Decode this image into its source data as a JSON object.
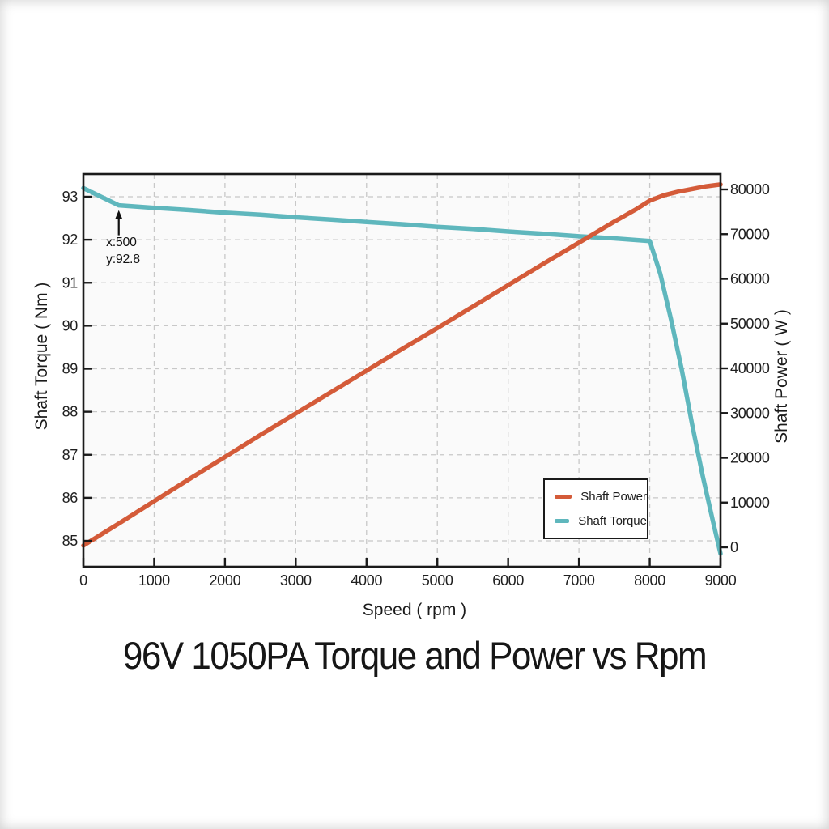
{
  "chart_data": {
    "type": "line",
    "title": "96V 1050PA Torque and Power vs Rpm",
    "xlabel": "Speed ( rpm )",
    "ylabel_left": "Shaft Torque ( Nm )",
    "ylabel_right": "Shaft Power ( W )",
    "grid": true,
    "x_axis": {
      "min": 0,
      "max": 9000,
      "ticks": [
        0,
        1000,
        2000,
        3000,
        4000,
        5000,
        6000,
        7000,
        8000,
        9000
      ],
      "tick_labels": [
        "0",
        "1000",
        "2000",
        "3000",
        "4000",
        "5000",
        "6000",
        "7000",
        "8000",
        "9000"
      ]
    },
    "y_axis_left": {
      "min": 85,
      "max": 93,
      "ticks": [
        85,
        86,
        87,
        88,
        89,
        90,
        91,
        92,
        93
      ],
      "tick_labels": [
        "85",
        "86",
        "87",
        "88",
        "89",
        "90",
        "91",
        "92",
        "93"
      ]
    },
    "y_axis_right": {
      "min": 0,
      "max": 80000,
      "ticks": [
        0,
        10000,
        20000,
        30000,
        40000,
        50000,
        60000,
        70000,
        80000
      ],
      "tick_labels": [
        "0",
        "10000",
        "20000",
        "30000",
        "40000",
        "50000",
        "60000",
        "70000",
        "80000"
      ]
    },
    "legend": {
      "position": "inside-lower-right",
      "entries": [
        "Shaft Power",
        "Shaft Torque"
      ]
    },
    "annotation": {
      "line1": "x:500",
      "line2": "y:92.8",
      "x": 500,
      "y": 92.8,
      "arrow": true
    },
    "style": {
      "plot_bg": "#fafafa",
      "grid_color": "#c8c8c8",
      "axis_color": "#1a1a1a",
      "text_color": "#1f1f1f"
    },
    "series": [
      {
        "name": "Shaft Power",
        "axis": "right",
        "color": "#d45b39",
        "points": [
          [
            0,
            400
          ],
          [
            500,
            5300
          ],
          [
            1000,
            10300
          ],
          [
            1500,
            15300
          ],
          [
            2000,
            20200
          ],
          [
            2500,
            25100
          ],
          [
            3000,
            29900
          ],
          [
            3500,
            34700
          ],
          [
            4000,
            39500
          ],
          [
            4500,
            44300
          ],
          [
            5000,
            49000
          ],
          [
            5500,
            53800
          ],
          [
            6000,
            58600
          ],
          [
            6500,
            63400
          ],
          [
            7000,
            68100
          ],
          [
            7500,
            72800
          ],
          [
            7800,
            75500
          ],
          [
            8000,
            77500
          ],
          [
            8200,
            78700
          ],
          [
            8400,
            79500
          ],
          [
            8600,
            80100
          ],
          [
            8800,
            80700
          ],
          [
            9000,
            81100
          ]
        ]
      },
      {
        "name": "Shaft Torque",
        "axis": "left",
        "color": "#5fb7bd",
        "points": [
          [
            0,
            93.2
          ],
          [
            500,
            92.8
          ],
          [
            1000,
            92.74
          ],
          [
            1500,
            92.69
          ],
          [
            2000,
            92.63
          ],
          [
            2500,
            92.58
          ],
          [
            3000,
            92.52
          ],
          [
            3500,
            92.47
          ],
          [
            4000,
            92.41
          ],
          [
            4500,
            92.36
          ],
          [
            5000,
            92.3
          ],
          [
            5500,
            92.25
          ],
          [
            6000,
            92.19
          ],
          [
            6500,
            92.14
          ],
          [
            7000,
            92.08
          ],
          [
            7500,
            92.03
          ],
          [
            8000,
            91.97
          ],
          [
            8150,
            91.2
          ],
          [
            8300,
            90.15
          ],
          [
            8450,
            89.0
          ],
          [
            8600,
            87.7
          ],
          [
            8750,
            86.5
          ],
          [
            8900,
            85.4
          ],
          [
            9000,
            84.7
          ]
        ]
      }
    ]
  }
}
